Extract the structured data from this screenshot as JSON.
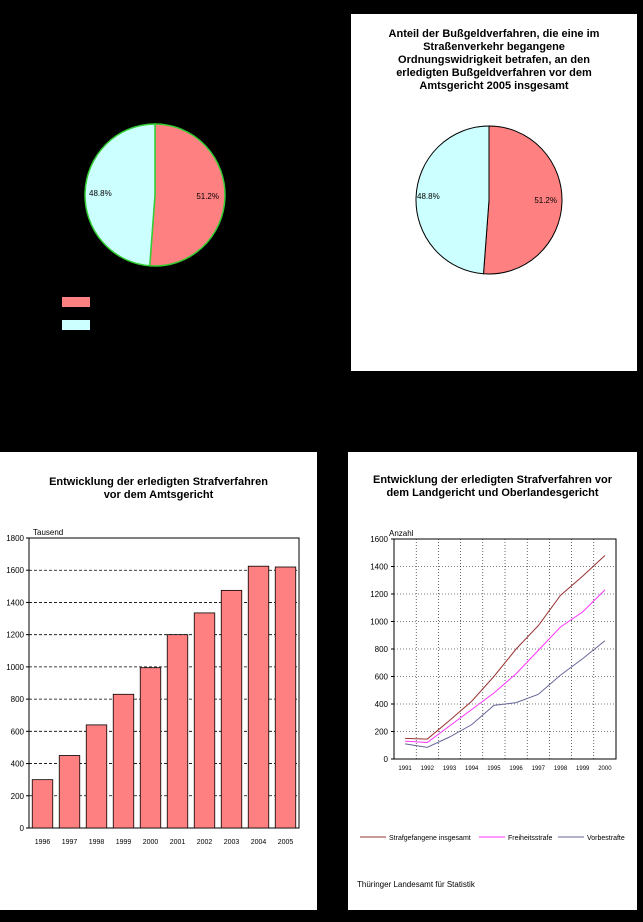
{
  "colors": {
    "background": "#000000",
    "panel": "#ffffff",
    "pie_red": "#ff8080",
    "pie_cyan": "#ccffff",
    "pie_outline_green": "#33cc33",
    "bar": "#ff8080",
    "line_insgesamt": "#993333",
    "line_freiheit": "#ff33ff",
    "line_vorbe": "#666699"
  },
  "chart_data": [
    {
      "id": "pie-left",
      "type": "pie",
      "title": "",
      "slices": [
        {
          "label": "51.2%",
          "value": 51.2,
          "color": "#ff8080"
        },
        {
          "label": "48.8%",
          "value": 48.8,
          "color": "#ccffff"
        }
      ],
      "legend_position": "bottom-left"
    },
    {
      "id": "pie-right",
      "type": "pie",
      "title": "Anteil der Bußgeldverfahren, die eine im Straßenverkehr begangene Ordnungswidrigkeit betrafen, an den erledigten Bußgeldverfahren vor dem Amtsgericht 2005 insgesamt",
      "slices": [
        {
          "label": "51.2%",
          "value": 51.2,
          "color": "#ff8080"
        },
        {
          "label": "48.8%",
          "value": 48.8,
          "color": "#ccffff"
        }
      ]
    },
    {
      "id": "bar-amtsgericht",
      "type": "bar",
      "title": "Entwicklung der erledigten Strafverfahren vor dem Amtsgericht",
      "ylabel": "Tausend",
      "ylim": [
        0,
        1800
      ],
      "yticks": [
        "0",
        "200",
        "400",
        "600",
        "800",
        "1000",
        "1200",
        "1400",
        "1600",
        "1800"
      ],
      "categories": [
        "1996",
        "1997",
        "1998",
        "1999",
        "2000",
        "2001",
        "2002",
        "2003",
        "2004",
        "2005"
      ],
      "values": [
        300,
        450,
        640,
        830,
        995,
        1200,
        1335,
        1475,
        1625,
        1620
      ],
      "grid": true
    },
    {
      "id": "line-landgericht",
      "type": "line",
      "title": "Entwicklung der erledigten Strafverfahren vor dem Landgericht und Oberlandesgericht",
      "ylabel": "Anzahl",
      "ylim": [
        0,
        1600
      ],
      "yticks": [
        "0",
        "200",
        "400",
        "600",
        "800",
        "1000",
        "1200",
        "1400",
        "1600"
      ],
      "categories": [
        "1991",
        "1992",
        "1993",
        "1994",
        "1995",
        "1996",
        "1997",
        "1998",
        "1999",
        "2000"
      ],
      "series": [
        {
          "name": "Strafgefangene insgesamt",
          "color": "#993333",
          "values": [
            150,
            145,
            280,
            420,
            600,
            800,
            970,
            1190,
            1330,
            1480
          ]
        },
        {
          "name": "Freiheitsstrafe",
          "color": "#ff33ff",
          "values": [
            130,
            120,
            240,
            360,
            480,
            620,
            790,
            960,
            1070,
            1230
          ]
        },
        {
          "name": "Vorbestrafte",
          "color": "#666699",
          "values": [
            110,
            85,
            160,
            250,
            390,
            410,
            470,
            610,
            730,
            860
          ]
        }
      ],
      "grid": true,
      "legend_position": "bottom"
    }
  ],
  "footer": {
    "source": "Thüringer Landesamt für Statistik"
  }
}
